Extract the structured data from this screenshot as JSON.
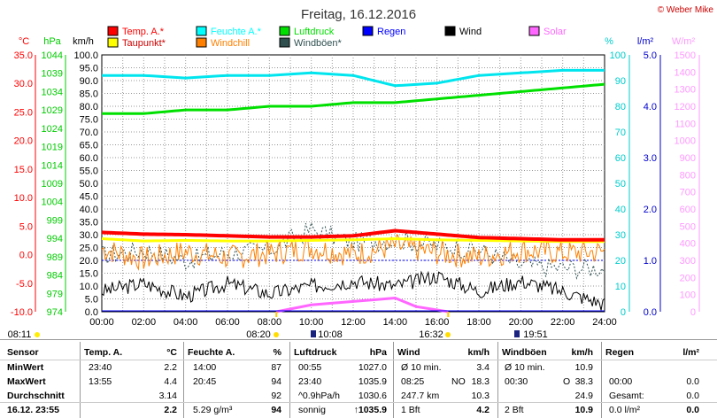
{
  "title": "Freitag, 16.12.2016",
  "copyright": "© Weber Mike",
  "legend": [
    {
      "label": "Temp. A.*",
      "color": "#ff0000"
    },
    {
      "label": "Feuchte A.*",
      "color": "#00ffff"
    },
    {
      "label": "Luftdruck",
      "color": "#00e000"
    },
    {
      "label": "Regen",
      "color": "#0000ff"
    },
    {
      "label": "Wind",
      "color": "#000000"
    },
    {
      "label": "Solar",
      "color": "#ff66ff"
    },
    {
      "label": "Taupunkt*",
      "color": "#ffff00"
    },
    {
      "label": "Windchill",
      "color": "#ff8000"
    },
    {
      "label": "Windböen*",
      "color": "#2f4f4f"
    }
  ],
  "axis_units": {
    "temp": "°C",
    "hpa": "hPa",
    "kmh": "km/h",
    "pct": "%",
    "lm2": "l/m²",
    "wm2": "W/m²"
  },
  "axis_ticks": {
    "temp": [
      "35.0",
      "30.0",
      "25.0",
      "20.0",
      "15.0",
      "10.0",
      "5.0",
      "0.0",
      "-5.0",
      "-10.0"
    ],
    "hpa": [
      "1044",
      "1039",
      "1034",
      "1029",
      "1024",
      "1019",
      "1014",
      "1009",
      "1004",
      "999",
      "994",
      "989",
      "984",
      "979",
      "974"
    ],
    "kmh": [
      "100.0",
      "95.0",
      "90.0",
      "85.0",
      "80.0",
      "75.0",
      "70.0",
      "65.0",
      "60.0",
      "55.0",
      "50.0",
      "45.0",
      "40.0",
      "35.0",
      "30.0",
      "25.0",
      "20.0",
      "15.0",
      "10.0",
      "5.0",
      "0.0"
    ],
    "pct": [
      "100",
      "90",
      "80",
      "70",
      "60",
      "50",
      "40",
      "30",
      "20",
      "10",
      "0"
    ],
    "lm2": [
      "5.0",
      "4.0",
      "3.0",
      "2.0",
      "1.0",
      "0.0"
    ],
    "wm2": [
      "1500",
      "1400",
      "1300",
      "1200",
      "1100",
      "1000",
      "900",
      "800",
      "700",
      "600",
      "500",
      "400",
      "300",
      "200",
      "100",
      "0"
    ],
    "time": [
      "00:00",
      "02:00",
      "04:00",
      "06:00",
      "08:00",
      "10:00",
      "12:00",
      "14:00",
      "16:00",
      "18:00",
      "20:00",
      "22:00",
      "24:00"
    ]
  },
  "sun_moon": {
    "moonset": "08:11",
    "sunrise": "08:20",
    "moonrise_top": "10:08",
    "sunset": "16:32",
    "moon2": "19:51"
  },
  "chart_data": {
    "type": "line",
    "title": "Freitag, 16.12.2016",
    "xlabel": "",
    "x": [
      "00:00",
      "02:00",
      "04:00",
      "06:00",
      "08:00",
      "10:00",
      "12:00",
      "14:00",
      "16:00",
      "18:00",
      "20:00",
      "22:00",
      "24:00"
    ],
    "series": [
      {
        "name": "Temp. A.*",
        "unit": "°C",
        "values": [
          3.9,
          3.6,
          3.5,
          3.3,
          3.1,
          3.1,
          3.3,
          4.2,
          3.6,
          3.0,
          2.8,
          2.6,
          2.6
        ]
      },
      {
        "name": "Feuchte A.*",
        "unit": "%",
        "values": [
          92,
          92,
          91,
          92,
          92,
          93,
          92,
          88,
          89,
          92,
          93,
          94,
          94
        ]
      },
      {
        "name": "Luftdruck",
        "unit": "hPa",
        "values": [
          1028,
          1028,
          1029,
          1029,
          1030,
          1030,
          1031,
          1031,
          1032,
          1033,
          1034,
          1035,
          1036
        ]
      },
      {
        "name": "Taupunkt*",
        "unit": "°C",
        "values": [
          2.8,
          2.4,
          2.5,
          2.4,
          2.4,
          2.5,
          2.6,
          2.8,
          2.6,
          2.5,
          2.4,
          2.3,
          2.3
        ]
      },
      {
        "name": "Windchill",
        "unit": "°C",
        "values": [
          1.0,
          -0.8,
          0.5,
          -0.5,
          0.2,
          1.2,
          0.0,
          1.5,
          0.3,
          -0.5,
          0.8,
          0.3,
          0.5
        ]
      },
      {
        "name": "Wind",
        "unit": "km/h",
        "values": [
          8,
          11,
          6,
          11,
          7,
          10,
          12,
          10,
          14,
          8,
          12,
          8,
          3
        ]
      },
      {
        "name": "Windböen*",
        "unit": "km/h",
        "values": [
          22,
          24,
          20,
          23,
          24,
          32,
          27,
          28,
          26,
          24,
          18,
          17,
          17
        ]
      },
      {
        "name": "Solar",
        "unit": "W/m²",
        "x": [
          "08:20",
          "10:00",
          "12:00",
          "13:00",
          "14:00",
          "15:00",
          "16:32"
        ],
        "values": [
          0,
          40,
          60,
          70,
          80,
          30,
          0
        ]
      },
      {
        "name": "Regen",
        "unit": "l/m²",
        "values": [
          0,
          0,
          0,
          0,
          0,
          0,
          0,
          0,
          0,
          0,
          0,
          0,
          0
        ]
      }
    ],
    "ylim_temp": [
      -10,
      35
    ],
    "ylim_hpa": [
      974,
      1044
    ],
    "ylim_kmh": [
      0,
      100
    ],
    "ylim_pct": [
      0,
      100
    ],
    "ylim_lm2": [
      0,
      5
    ],
    "ylim_wm2": [
      0,
      1500
    ],
    "grid": true
  },
  "table": {
    "headers": [
      "Sensor",
      "Temp. A.",
      "°C",
      "Feuchte A.",
      "%",
      "Luftdruck",
      "hPa",
      "Wind",
      "km/h",
      "Windböen",
      "km/h",
      "Regen",
      "l/m²"
    ],
    "rows": [
      {
        "label": "MinWert",
        "temp_t": "23:40",
        "temp_v": "2.2",
        "hum_t": "14:00",
        "hum_v": "87",
        "pres_t": "00:55",
        "pres_v": "1027.0",
        "wind_t": "Ø 10 min.",
        "wind_v": "3.4",
        "gust_t": "Ø 10 min.",
        "gust_v": "10.9",
        "rain_t": "",
        "rain_v": ""
      },
      {
        "label": "MaxWert",
        "temp_t": "13:55",
        "temp_v": "4.4",
        "hum_t": "20:45",
        "hum_v": "94",
        "pres_t": "23:40",
        "pres_v": "1035.9",
        "wind_t": "08:25",
        "wind_dir": "NO",
        "wind_v": "18.3",
        "gust_t": "00:30",
        "gust_dir": "O",
        "gust_v": "38.3",
        "rain_t": "00:00",
        "rain_v": "0.0"
      },
      {
        "label": "Durchschnitt",
        "temp_t": "",
        "temp_v": "3.14",
        "hum_t": "",
        "hum_v": "92",
        "pres_t": "^0.9hPa/h",
        "pres_v": "1030.6",
        "wind_t": "247.7 km",
        "wind_v": "10.3",
        "gust_t": "",
        "gust_v": "24.9",
        "rain_t": "Gesamt:",
        "rain_v": "0.0"
      },
      {
        "label": "16.12. 23:55",
        "temp_t": "",
        "temp_v": "2.2",
        "hum_t": "5.29 g/m³",
        "hum_v": "94",
        "pres_t": "sonnig",
        "pres_v": "↑1035.9",
        "wind_t": "1 Bft",
        "wind_v": "4.2",
        "gust_t": "2 Bft",
        "gust_v": "10.9",
        "rain_t": "0.0 l/m²",
        "rain_v": "0.0"
      }
    ]
  }
}
